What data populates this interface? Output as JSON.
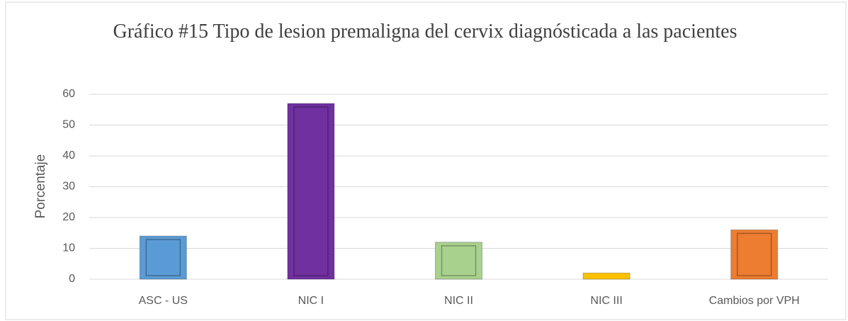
{
  "chart_data": {
    "type": "bar",
    "title": "Gráfico #15 Tipo de lesion premaligna del cervix diagnósticada a las pacientes",
    "ylabel": "Porcentaje",
    "categories": [
      "ASC - US",
      "NIC I",
      "NIC II",
      "NIC III",
      "Cambios por VPH"
    ],
    "values": [
      14,
      57,
      12,
      2,
      16
    ],
    "colors": [
      "#5b9bd5",
      "#7030a0",
      "#a9d18e",
      "#ffc000",
      "#ed7d31"
    ],
    "ylim": [
      0,
      60
    ],
    "yticks": [
      0,
      10,
      20,
      30,
      40,
      50,
      60
    ],
    "grid": true
  }
}
